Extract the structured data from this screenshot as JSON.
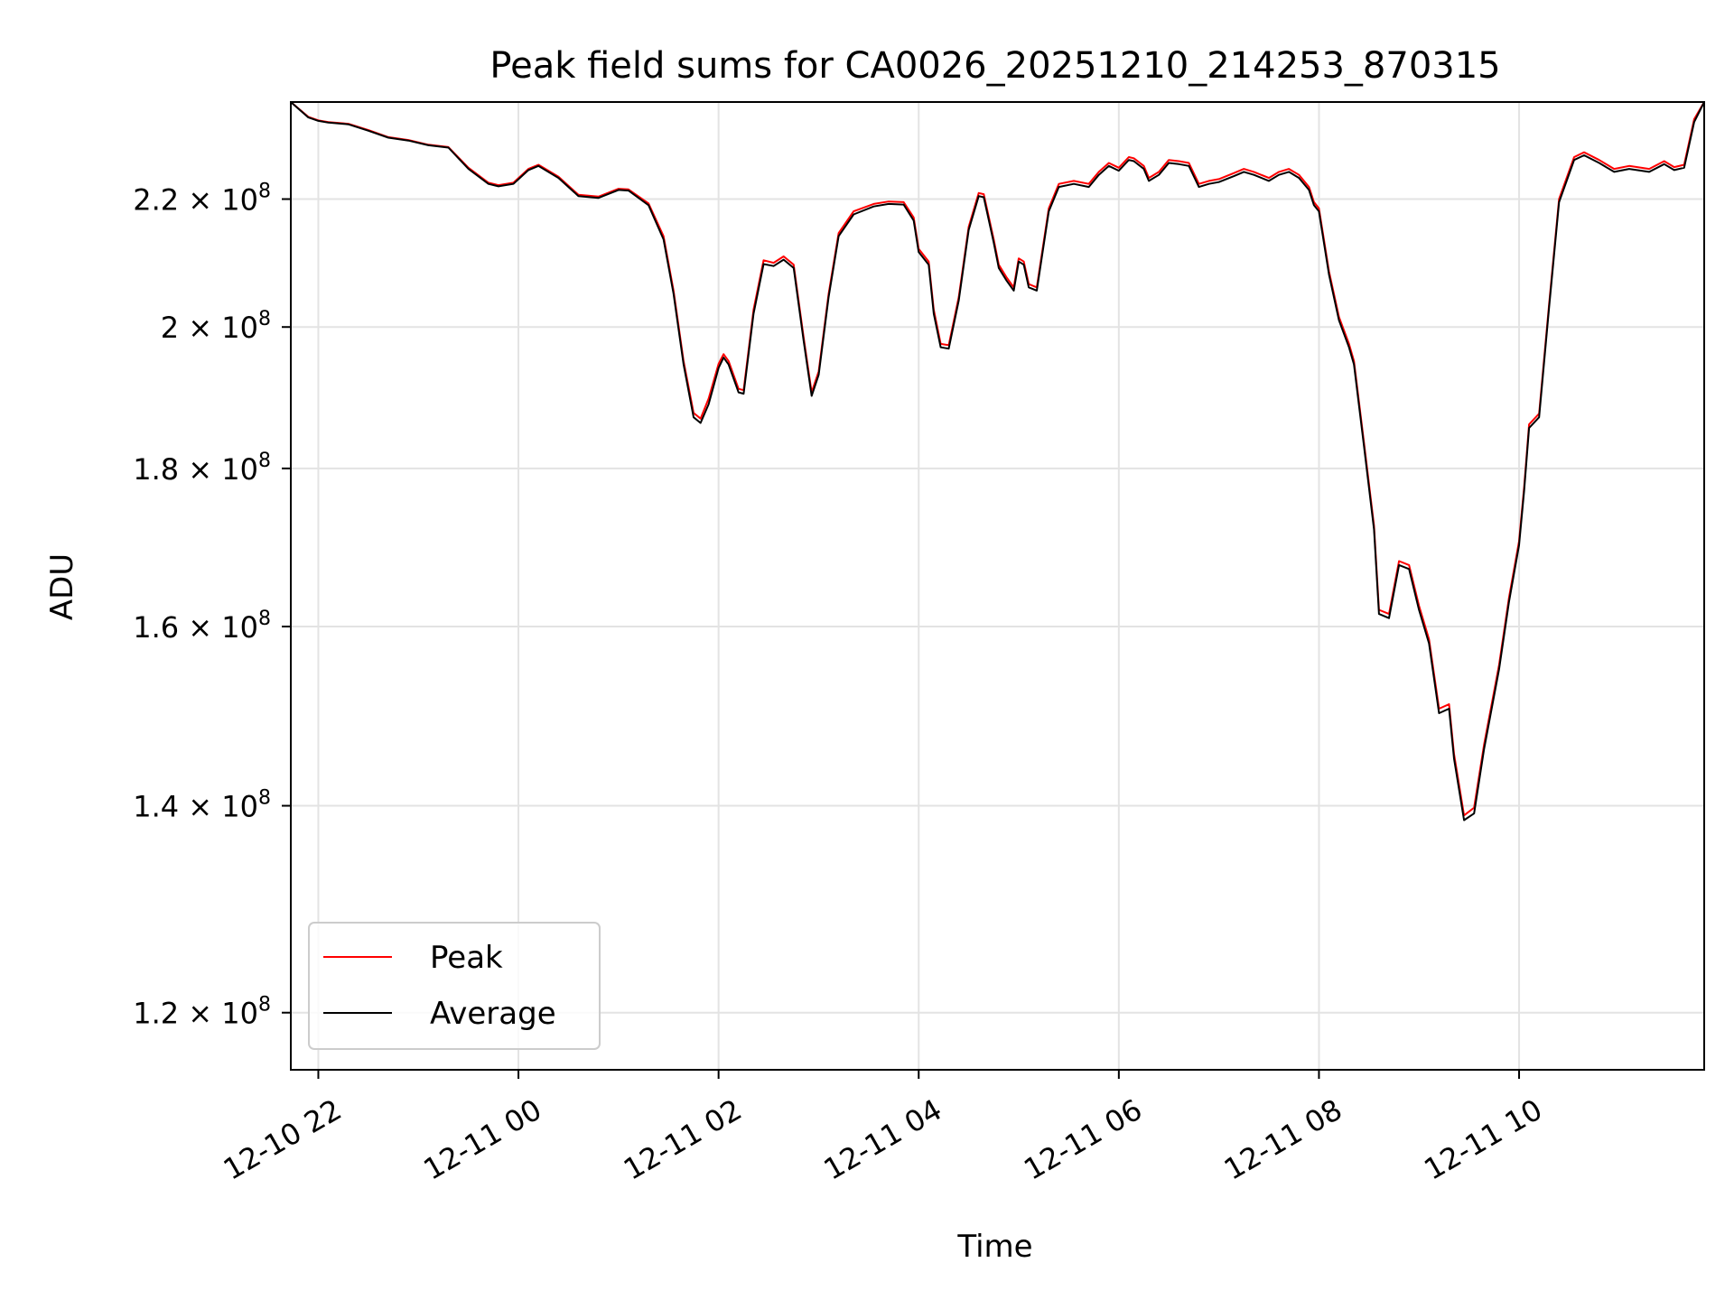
{
  "chart_data": {
    "type": "line",
    "title": "Peak field sums for CA0026_20251210_214253_870315",
    "xlabel": "Time",
    "ylabel": "ADU",
    "y_scale": "log",
    "ylim": [
      115000000,
      236500000
    ],
    "xlim_hours": [
      -0.275,
      13.85
    ],
    "grid": true,
    "legend_position": "lower-left",
    "x_ticks": [
      {
        "hour": 0,
        "label": "12-10 22"
      },
      {
        "hour": 2,
        "label": "12-11 00"
      },
      {
        "hour": 4,
        "label": "12-11 02"
      },
      {
        "hour": 6,
        "label": "12-11 04"
      },
      {
        "hour": 8,
        "label": "12-11 06"
      },
      {
        "hour": 10,
        "label": "12-11 08"
      },
      {
        "hour": 12,
        "label": "12-11 10"
      }
    ],
    "y_ticks": [
      {
        "value": 120000000,
        "mantissa": "1.2",
        "exponent": "8"
      },
      {
        "value": 140000000,
        "mantissa": "1.4",
        "exponent": "8"
      },
      {
        "value": 160000000,
        "mantissa": "1.6",
        "exponent": "8"
      },
      {
        "value": 180000000,
        "mantissa": "1.8",
        "exponent": "8"
      },
      {
        "value": 200000000,
        "mantissa": "2",
        "exponent": "8"
      },
      {
        "value": 220000000,
        "mantissa": "2.2",
        "exponent": "8"
      }
    ],
    "times_unit": "hours since 2025-12-10 22:00",
    "series": [
      {
        "name": "Average",
        "color": "#000000",
        "points": [
          [
            -0.275,
            236.5
          ],
          [
            -0.1,
            233.8
          ],
          [
            0.0,
            233.2
          ],
          [
            0.1,
            232.9
          ],
          [
            0.3,
            232.6
          ],
          [
            0.5,
            231.5
          ],
          [
            0.7,
            230.3
          ],
          [
            0.9,
            229.8
          ],
          [
            1.1,
            229.0
          ],
          [
            1.3,
            228.6
          ],
          [
            1.5,
            225.0
          ],
          [
            1.7,
            222.5
          ],
          [
            1.8,
            222.1
          ],
          [
            1.95,
            222.5
          ],
          [
            2.1,
            224.8
          ],
          [
            2.2,
            225.5
          ],
          [
            2.4,
            223.5
          ],
          [
            2.6,
            220.5
          ],
          [
            2.8,
            220.2
          ],
          [
            3.0,
            221.5
          ],
          [
            3.1,
            221.4
          ],
          [
            3.3,
            219.0
          ],
          [
            3.45,
            213.5
          ],
          [
            3.55,
            205.0
          ],
          [
            3.65,
            194.5
          ],
          [
            3.75,
            187.0
          ],
          [
            3.82,
            186.2
          ],
          [
            3.9,
            188.8
          ],
          [
            4.0,
            194.0
          ],
          [
            4.05,
            195.5
          ],
          [
            4.1,
            194.5
          ],
          [
            4.2,
            190.5
          ],
          [
            4.25,
            190.3
          ],
          [
            4.35,
            202.0
          ],
          [
            4.45,
            209.6
          ],
          [
            4.55,
            209.3
          ],
          [
            4.65,
            210.3
          ],
          [
            4.75,
            209.0
          ],
          [
            4.85,
            198.0
          ],
          [
            4.93,
            190.0
          ],
          [
            5.0,
            193.0
          ],
          [
            5.1,
            204.5
          ],
          [
            5.2,
            214.0
          ],
          [
            5.35,
            217.5
          ],
          [
            5.55,
            218.8
          ],
          [
            5.7,
            219.2
          ],
          [
            5.85,
            219.1
          ],
          [
            5.95,
            216.5
          ],
          [
            6.0,
            211.5
          ],
          [
            6.1,
            209.5
          ],
          [
            6.15,
            202.0
          ],
          [
            6.22,
            197.0
          ],
          [
            6.3,
            196.8
          ],
          [
            6.4,
            204.0
          ],
          [
            6.5,
            215.0
          ],
          [
            6.6,
            220.5
          ],
          [
            6.65,
            220.3
          ],
          [
            6.75,
            213.0
          ],
          [
            6.8,
            209.0
          ],
          [
            6.88,
            207.0
          ],
          [
            6.95,
            205.5
          ],
          [
            7.0,
            210.0
          ],
          [
            7.05,
            209.5
          ],
          [
            7.1,
            206.0
          ],
          [
            7.18,
            205.5
          ],
          [
            7.3,
            218.0
          ],
          [
            7.4,
            222.0
          ],
          [
            7.55,
            222.5
          ],
          [
            7.7,
            222.0
          ],
          [
            7.8,
            224.0
          ],
          [
            7.9,
            225.5
          ],
          [
            8.0,
            224.7
          ],
          [
            8.1,
            226.5
          ],
          [
            8.15,
            226.3
          ],
          [
            8.25,
            225.0
          ],
          [
            8.3,
            223.0
          ],
          [
            8.4,
            224.0
          ],
          [
            8.5,
            226.0
          ],
          [
            8.6,
            225.8
          ],
          [
            8.7,
            225.5
          ],
          [
            8.8,
            222.0
          ],
          [
            8.9,
            222.5
          ],
          [
            9.0,
            222.8
          ],
          [
            9.15,
            223.8
          ],
          [
            9.25,
            224.5
          ],
          [
            9.35,
            224.0
          ],
          [
            9.5,
            223.0
          ],
          [
            9.6,
            224.0
          ],
          [
            9.7,
            224.5
          ],
          [
            9.8,
            223.5
          ],
          [
            9.9,
            221.5
          ],
          [
            9.95,
            219.0
          ],
          [
            10.0,
            218.0
          ],
          [
            10.1,
            208.0
          ],
          [
            10.2,
            201.0
          ],
          [
            10.3,
            197.0
          ],
          [
            10.35,
            194.5
          ],
          [
            10.45,
            183.0
          ],
          [
            10.55,
            172.0
          ],
          [
            10.6,
            161.5
          ],
          [
            10.7,
            161.0
          ],
          [
            10.8,
            167.5
          ],
          [
            10.9,
            167.0
          ],
          [
            11.0,
            162.0
          ],
          [
            11.1,
            158.0
          ],
          [
            11.2,
            150.0
          ],
          [
            11.3,
            150.5
          ],
          [
            11.35,
            145.0
          ],
          [
            11.45,
            138.5
          ],
          [
            11.55,
            139.2
          ],
          [
            11.65,
            146.0
          ],
          [
            11.8,
            155.0
          ],
          [
            11.9,
            163.0
          ],
          [
            12.0,
            170.0
          ],
          [
            12.05,
            177.0
          ],
          [
            12.1,
            185.5
          ],
          [
            12.2,
            187.0
          ],
          [
            12.3,
            203.0
          ],
          [
            12.4,
            219.5
          ],
          [
            12.55,
            226.5
          ],
          [
            12.65,
            227.3
          ],
          [
            12.8,
            226.0
          ],
          [
            12.95,
            224.5
          ],
          [
            13.1,
            225.0
          ],
          [
            13.3,
            224.5
          ],
          [
            13.45,
            225.8
          ],
          [
            13.55,
            224.8
          ],
          [
            13.65,
            225.2
          ],
          [
            13.75,
            233.0
          ],
          [
            13.85,
            236.5
          ]
        ]
      },
      {
        "name": "Peak",
        "color": "#ff0000",
        "points": [
          [
            -0.275,
            236.5
          ],
          [
            -0.1,
            233.9
          ],
          [
            0.0,
            233.3
          ],
          [
            0.1,
            233.0
          ],
          [
            0.3,
            232.7
          ],
          [
            0.5,
            231.6
          ],
          [
            0.7,
            230.4
          ],
          [
            0.9,
            229.9
          ],
          [
            1.1,
            229.1
          ],
          [
            1.3,
            228.7
          ],
          [
            1.5,
            225.2
          ],
          [
            1.7,
            222.7
          ],
          [
            1.8,
            222.3
          ],
          [
            1.95,
            222.7
          ],
          [
            2.1,
            225.0
          ],
          [
            2.2,
            225.7
          ],
          [
            2.4,
            223.7
          ],
          [
            2.6,
            220.7
          ],
          [
            2.8,
            220.4
          ],
          [
            3.0,
            221.7
          ],
          [
            3.1,
            221.6
          ],
          [
            3.3,
            219.3
          ],
          [
            3.45,
            214.0
          ],
          [
            3.55,
            205.5
          ],
          [
            3.65,
            195.0
          ],
          [
            3.75,
            187.6
          ],
          [
            3.82,
            186.8
          ],
          [
            3.9,
            189.6
          ],
          [
            4.0,
            194.6
          ],
          [
            4.05,
            196.0
          ],
          [
            4.1,
            195.0
          ],
          [
            4.2,
            191.0
          ],
          [
            4.25,
            190.8
          ],
          [
            4.35,
            202.6
          ],
          [
            4.45,
            210.2
          ],
          [
            4.55,
            209.8
          ],
          [
            4.65,
            210.8
          ],
          [
            4.75,
            209.5
          ],
          [
            4.85,
            198.5
          ],
          [
            4.93,
            190.5
          ],
          [
            5.0,
            193.5
          ],
          [
            5.1,
            205.0
          ],
          [
            5.2,
            214.5
          ],
          [
            5.35,
            218.0
          ],
          [
            5.55,
            219.2
          ],
          [
            5.7,
            219.6
          ],
          [
            5.85,
            219.5
          ],
          [
            5.95,
            217.0
          ],
          [
            6.0,
            212.0
          ],
          [
            6.1,
            210.0
          ],
          [
            6.15,
            202.6
          ],
          [
            6.22,
            197.5
          ],
          [
            6.3,
            197.3
          ],
          [
            6.4,
            204.5
          ],
          [
            6.5,
            215.5
          ],
          [
            6.6,
            221.0
          ],
          [
            6.65,
            220.8
          ],
          [
            6.75,
            213.5
          ],
          [
            6.8,
            209.5
          ],
          [
            6.88,
            207.5
          ],
          [
            6.95,
            206.0
          ],
          [
            7.0,
            210.5
          ],
          [
            7.05,
            210.0
          ],
          [
            7.1,
            206.5
          ],
          [
            7.18,
            206.0
          ],
          [
            7.3,
            218.5
          ],
          [
            7.4,
            222.5
          ],
          [
            7.55,
            223.0
          ],
          [
            7.7,
            222.5
          ],
          [
            7.8,
            224.5
          ],
          [
            7.9,
            226.0
          ],
          [
            8.0,
            225.2
          ],
          [
            8.1,
            227.0
          ],
          [
            8.15,
            226.8
          ],
          [
            8.25,
            225.5
          ],
          [
            8.3,
            223.5
          ],
          [
            8.4,
            224.5
          ],
          [
            8.5,
            226.5
          ],
          [
            8.6,
            226.3
          ],
          [
            8.7,
            226.0
          ],
          [
            8.8,
            222.5
          ],
          [
            8.9,
            223.0
          ],
          [
            9.0,
            223.3
          ],
          [
            9.15,
            224.3
          ],
          [
            9.25,
            225.0
          ],
          [
            9.35,
            224.5
          ],
          [
            9.5,
            223.5
          ],
          [
            9.6,
            224.5
          ],
          [
            9.7,
            225.0
          ],
          [
            9.8,
            224.0
          ],
          [
            9.9,
            222.0
          ],
          [
            9.95,
            219.5
          ],
          [
            10.0,
            218.5
          ],
          [
            10.1,
            208.5
          ],
          [
            10.2,
            201.5
          ],
          [
            10.3,
            197.5
          ],
          [
            10.35,
            195.0
          ],
          [
            10.45,
            183.5
          ],
          [
            10.55,
            172.5
          ],
          [
            10.6,
            162.0
          ],
          [
            10.7,
            161.5
          ],
          [
            10.8,
            168.0
          ],
          [
            10.9,
            167.5
          ],
          [
            11.0,
            162.5
          ],
          [
            11.1,
            158.5
          ],
          [
            11.2,
            150.5
          ],
          [
            11.3,
            151.0
          ],
          [
            11.35,
            145.5
          ],
          [
            11.45,
            139.0
          ],
          [
            11.55,
            139.8
          ],
          [
            11.65,
            146.5
          ],
          [
            11.8,
            155.5
          ],
          [
            11.9,
            163.5
          ],
          [
            12.0,
            170.5
          ],
          [
            12.05,
            177.5
          ],
          [
            12.1,
            186.0
          ],
          [
            12.2,
            187.5
          ],
          [
            12.3,
            203.5
          ],
          [
            12.4,
            220.0
          ],
          [
            12.55,
            227.0
          ],
          [
            12.65,
            227.8
          ],
          [
            12.8,
            226.5
          ],
          [
            12.95,
            225.0
          ],
          [
            13.1,
            225.5
          ],
          [
            13.3,
            225.0
          ],
          [
            13.45,
            226.3
          ],
          [
            13.55,
            225.3
          ],
          [
            13.65,
            225.7
          ],
          [
            13.75,
            233.5
          ],
          [
            13.85,
            236.5
          ]
        ]
      }
    ],
    "legend": [
      {
        "label": "Peak",
        "color": "#ff0000"
      },
      {
        "label": "Average",
        "color": "#000000"
      }
    ]
  }
}
